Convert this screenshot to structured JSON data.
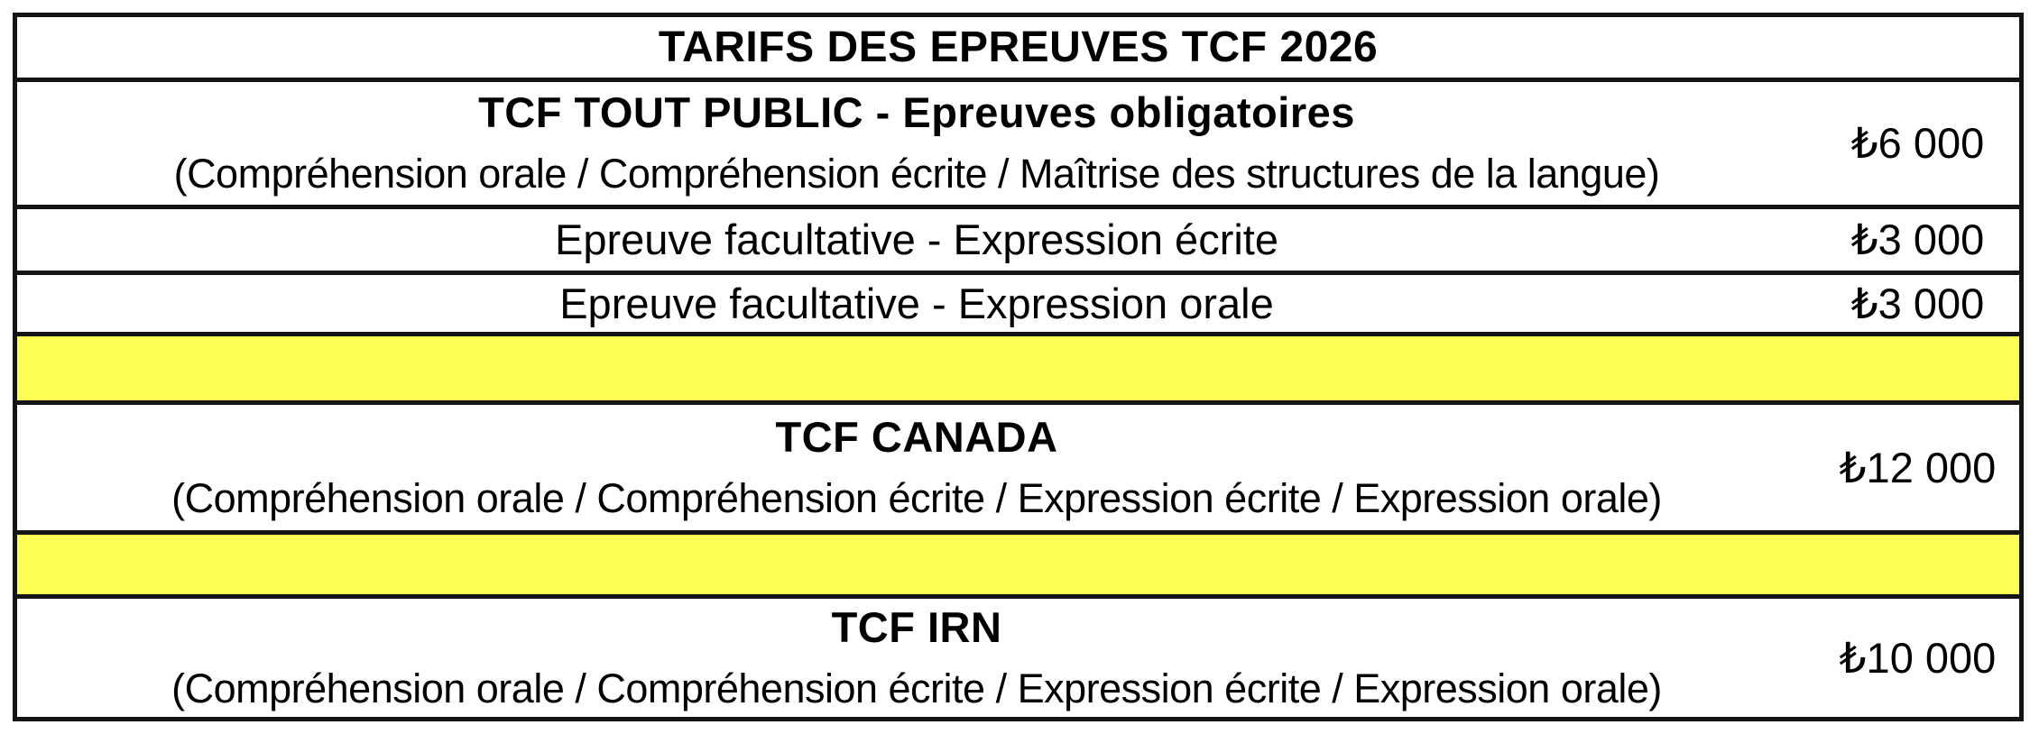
{
  "colors": {
    "highlight_yellow": "#FDFF57",
    "border_black": "#141414",
    "text_black": "#000000"
  },
  "table": {
    "title": "TARIFS DES EPREUVES TCF 2026",
    "currency": "₺",
    "rows": [
      {
        "kind": "title",
        "text": "TARIFS DES EPREUVES TCF 2026"
      },
      {
        "kind": "item",
        "name": "TCF TOUT PUBLIC - Epreuves obligatoires",
        "detail": "(Compréhension orale / Compréhension écrite / Maîtrise des structures de la langue)",
        "price": "₺6 000"
      },
      {
        "kind": "item",
        "name": "Epreuve facultative - Expression écrite",
        "detail": "",
        "price": "₺3 000"
      },
      {
        "kind": "item",
        "name": "Epreuve facultative - Expression orale",
        "detail": "",
        "price": "₺3 000"
      },
      {
        "kind": "spacer"
      },
      {
        "kind": "item",
        "name": "TCF CANADA",
        "detail": "(Compréhension orale / Compréhension écrite / Expression écrite / Expression orale)",
        "price": "₺12 000"
      },
      {
        "kind": "spacer"
      },
      {
        "kind": "item",
        "name": "TCF IRN",
        "detail": "(Compréhension orale / Compréhension écrite / Expression écrite / Expression orale)",
        "price": "₺10 000"
      }
    ]
  }
}
